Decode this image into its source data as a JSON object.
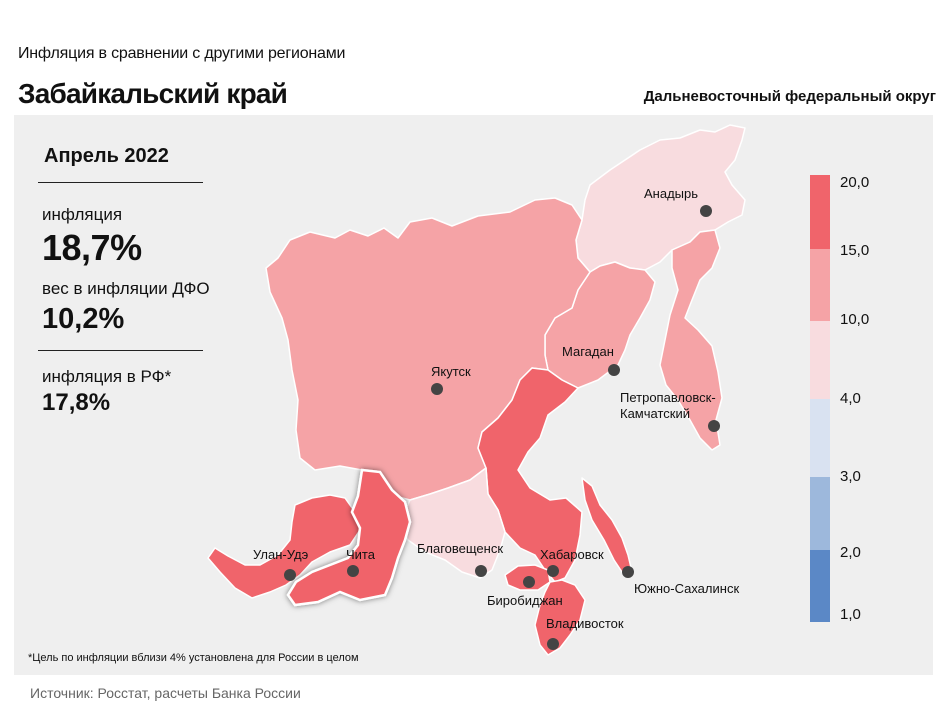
{
  "header": {
    "subtitle": "Инфляция  в сравнении  с другими  регионами",
    "title": "Забайкальский край",
    "district": "Дальневосточный федеральный округ"
  },
  "stats": {
    "period": "Апрель 2022",
    "inflation_label": "инфляция",
    "inflation_value": "18,7%",
    "weight_label": "вес в инфляции  ДФО",
    "weight_value": "10,2%",
    "rf_label": "инфляция  в РФ*",
    "rf_value": "17,8%"
  },
  "cities": {
    "anadyr": "Анадырь",
    "magadan": "Магадан",
    "yakutsk": "Якутск",
    "petropavlovsk_1": "Петропавловск-",
    "petropavlovsk_2": "Камчатский",
    "ulan_ude": "Улан-Удэ",
    "chita": "Чита",
    "blagoveshchensk": "Благовещенск",
    "khabarovsk": "Хабаровск",
    "birobidzhan": "Биробиджан",
    "yuzhno": "Южно-Сахалинск",
    "vladivostok": "Владивосток"
  },
  "legend": {
    "labels": [
      "20,0",
      "15,0",
      "10,0",
      "4,0",
      "3,0",
      "2,0",
      "1,0"
    ],
    "colors": [
      "#f0646b",
      "#f5a3a6",
      "#f8dcdf",
      "#d9e2f1",
      "#9db8dc",
      "#5b88c6"
    ]
  },
  "colors": {
    "high": "#f0646b",
    "mid": "#f5a3a6",
    "low": "#f8dcdf",
    "panel": "#efefef"
  },
  "footnote": "*Цель по инфляции вблизи 4% установлена для России в целом",
  "source": "Источник: Росстат, расчеты Банка России"
}
